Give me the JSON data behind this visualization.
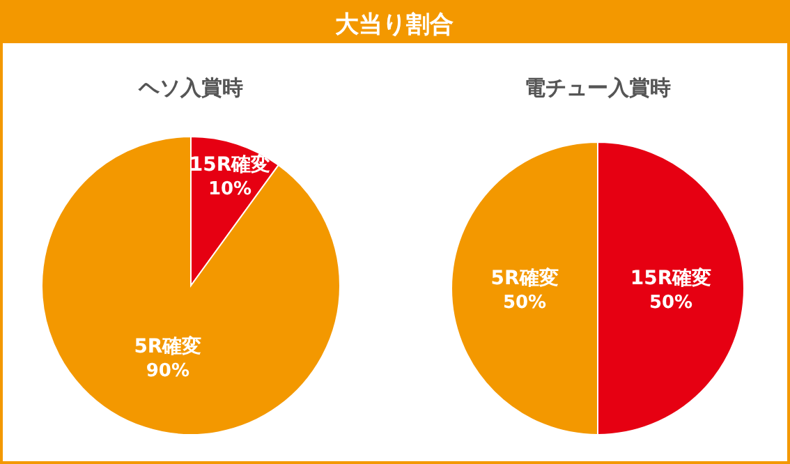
{
  "chart_data": [
    {
      "type": "other",
      "title": "大当り割合"
    },
    {
      "type": "pie",
      "title": "ヘソ入賞時",
      "categories": [
        "15R確変",
        "5R確変"
      ],
      "values": [
        10,
        90
      ],
      "colors": [
        "#e60012",
        "#f39800"
      ],
      "value_labels": [
        "10%",
        "90%"
      ]
    },
    {
      "type": "pie",
      "title": "電チュー入賞時",
      "categories": [
        "15R確変",
        "5R確変"
      ],
      "values": [
        50,
        50
      ],
      "colors": [
        "#e60012",
        "#f39800"
      ],
      "value_labels": [
        "50%",
        "50%"
      ]
    }
  ]
}
